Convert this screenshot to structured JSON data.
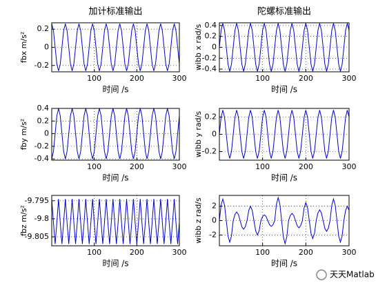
{
  "chart_data": [
    {
      "type": "line",
      "title": "加计标准输出",
      "ylabel": "fbx m/s²",
      "xlabel": "时间 /s",
      "grid": true,
      "xlim": [
        0,
        300
      ],
      "xticks": [
        100,
        200,
        300
      ],
      "ylim": [
        -0.27,
        0.27
      ],
      "yticks": [
        -0.2,
        0,
        0.2
      ],
      "x": [
        0,
        4,
        8,
        12,
        16,
        20,
        24,
        28,
        32,
        36,
        40,
        44,
        48,
        52,
        56,
        60,
        64,
        68,
        72,
        76,
        80,
        84,
        88,
        92,
        96,
        100,
        104,
        108,
        112,
        116,
        120,
        124,
        128,
        132,
        136,
        140,
        144,
        148,
        152,
        156,
        160,
        164,
        168,
        172,
        176,
        180,
        184,
        188,
        192,
        196,
        200,
        204,
        208,
        212,
        216,
        220,
        224,
        228,
        232,
        236,
        240,
        244,
        248,
        252,
        256,
        260,
        264,
        268,
        272,
        276,
        280,
        284,
        288,
        292,
        296,
        300
      ],
      "series": [
        {
          "color": "#0000c8",
          "values": [
            0.26,
            0.184,
            0,
            -0.184,
            -0.26,
            -0.184,
            0,
            0.184,
            0.26,
            0.184,
            0,
            -0.184,
            -0.26,
            -0.184,
            0,
            0.184,
            0.26,
            0.184,
            0,
            -0.184,
            -0.26,
            -0.184,
            0,
            0.184,
            0.26,
            0.184,
            0,
            -0.184,
            -0.26,
            -0.184,
            0,
            0.184,
            0.26,
            0.184,
            0,
            -0.184,
            -0.26,
            -0.184,
            0,
            0.184,
            0.26,
            0.184,
            0,
            -0.184,
            -0.26,
            -0.184,
            0,
            0.184,
            0.26,
            0.184,
            0,
            -0.184,
            -0.26,
            -0.184,
            0,
            0.184,
            0.26,
            0.184,
            0,
            -0.184,
            -0.26,
            -0.184,
            0,
            0.184,
            0.26,
            0.184,
            0,
            -0.184,
            -0.26,
            -0.184,
            0,
            0.184,
            0.26,
            0.184,
            0,
            -0.184
          ]
        }
      ]
    },
    {
      "type": "line",
      "title": "陀螺标准输出",
      "ylabel": "wibb x rad/s",
      "xlabel": "时间 /s",
      "grid": true,
      "xlim": [
        0,
        300
      ],
      "xticks": [
        100,
        200,
        300
      ],
      "ylim": [
        -0.45,
        0.45
      ],
      "yticks": [
        -0.4,
        -0.2,
        0,
        0.2,
        0.4
      ],
      "x": [
        0,
        4,
        8,
        12,
        16,
        20,
        24,
        28,
        32,
        36,
        40,
        44,
        48,
        52,
        56,
        60,
        64,
        68,
        72,
        76,
        80,
        84,
        88,
        92,
        96,
        100,
        104,
        108,
        112,
        116,
        120,
        124,
        128,
        132,
        136,
        140,
        144,
        148,
        152,
        156,
        160,
        164,
        168,
        172,
        176,
        180,
        184,
        188,
        192,
        196,
        200,
        204,
        208,
        212,
        216,
        220,
        224,
        228,
        232,
        236,
        240,
        244,
        248,
        252,
        256,
        260,
        264,
        268,
        272,
        276,
        280,
        284,
        288,
        292,
        296,
        300
      ],
      "series": [
        {
          "color": "#0000c8",
          "values": [
            0,
            0.311,
            0.44,
            0.311,
            0,
            -0.311,
            -0.44,
            -0.311,
            0,
            0.311,
            0.44,
            0.311,
            0,
            -0.311,
            -0.44,
            -0.311,
            0,
            0.311,
            0.44,
            0.311,
            0,
            -0.311,
            -0.44,
            -0.311,
            0,
            0.311,
            0.44,
            0.311,
            0,
            -0.311,
            -0.44,
            -0.311,
            0,
            0.311,
            0.44,
            0.311,
            0,
            -0.311,
            -0.44,
            -0.311,
            0,
            0.311,
            0.44,
            0.311,
            0,
            -0.311,
            -0.44,
            -0.311,
            0,
            0.311,
            0.44,
            0.311,
            0,
            -0.311,
            -0.44,
            -0.311,
            0,
            0.311,
            0.44,
            0.311,
            0,
            -0.311,
            -0.44,
            -0.311,
            0,
            0.311,
            0.44,
            0.311,
            0,
            -0.311,
            -0.44,
            -0.311,
            0,
            0.311,
            0.44,
            0.311
          ]
        }
      ]
    },
    {
      "type": "line",
      "ylabel": "fby m/s²",
      "xlabel": "时间 /s",
      "grid": true,
      "xlim": [
        0,
        300
      ],
      "xticks": [
        100,
        200,
        300
      ],
      "ylim": [
        -0.42,
        0.4
      ],
      "yticks": [
        -0.4,
        -0.2,
        0,
        0.2,
        0.4
      ],
      "x": [
        0,
        4,
        8,
        12,
        16,
        20,
        24,
        28,
        32,
        36,
        40,
        44,
        48,
        52,
        56,
        60,
        64,
        68,
        72,
        76,
        80,
        84,
        88,
        92,
        96,
        100,
        104,
        108,
        112,
        116,
        120,
        124,
        128,
        132,
        136,
        140,
        144,
        148,
        152,
        156,
        160,
        164,
        168,
        172,
        176,
        180,
        184,
        188,
        192,
        196,
        200,
        204,
        208,
        212,
        216,
        220,
        224,
        228,
        232,
        236,
        240,
        244,
        248,
        252,
        256,
        260,
        264,
        268,
        272,
        276,
        280,
        284,
        288,
        292,
        296,
        300
      ],
      "series": [
        {
          "color": "#0000c8",
          "values": [
            -0.4,
            -0.283,
            0,
            0.283,
            0.4,
            0.283,
            0,
            -0.283,
            -0.4,
            -0.283,
            0,
            0.283,
            0.4,
            0.283,
            0,
            -0.283,
            -0.4,
            -0.283,
            0,
            0.283,
            0.4,
            0.283,
            0,
            -0.283,
            -0.4,
            -0.283,
            0,
            0.283,
            0.4,
            0.283,
            0,
            -0.283,
            -0.4,
            -0.283,
            0,
            0.283,
            0.4,
            0.283,
            0,
            -0.283,
            -0.4,
            -0.283,
            0,
            0.283,
            0.4,
            0.283,
            0,
            -0.283,
            -0.4,
            -0.283,
            0,
            0.283,
            0.4,
            0.283,
            0,
            -0.283,
            -0.4,
            -0.283,
            0,
            0.283,
            0.4,
            0.283,
            0,
            -0.283,
            -0.4,
            -0.283,
            0,
            0.283,
            0.4,
            0.283,
            0,
            -0.283,
            -0.4,
            -0.283,
            0,
            0.283
          ]
        }
      ]
    },
    {
      "type": "line",
      "ylabel": "wibb y rad/s",
      "xlabel": "时间 /s",
      "grid": true,
      "xlim": [
        0,
        300
      ],
      "xticks": [
        100,
        200,
        300
      ],
      "ylim": [
        -0.3,
        0.3
      ],
      "yticks": [
        -0.2,
        0,
        0.2
      ],
      "x": [
        0,
        4,
        8,
        12,
        16,
        20,
        24,
        28,
        32,
        36,
        40,
        44,
        48,
        52,
        56,
        60,
        64,
        68,
        72,
        76,
        80,
        84,
        88,
        92,
        96,
        100,
        104,
        108,
        112,
        116,
        120,
        124,
        128,
        132,
        136,
        140,
        144,
        148,
        152,
        156,
        160,
        164,
        168,
        172,
        176,
        180,
        184,
        188,
        192,
        196,
        200,
        204,
        208,
        212,
        216,
        220,
        224,
        228,
        232,
        236,
        240,
        244,
        248,
        252,
        256,
        260,
        264,
        268,
        272,
        276,
        280,
        284,
        288,
        292,
        296,
        300
      ],
      "series": [
        {
          "color": "#0000c8",
          "values": [
            0,
            0.198,
            0.28,
            0.198,
            0,
            -0.198,
            -0.28,
            -0.198,
            0,
            0.198,
            0.28,
            0.198,
            0,
            -0.198,
            -0.28,
            -0.198,
            0,
            0.198,
            0.28,
            0.198,
            0,
            -0.198,
            -0.28,
            -0.198,
            0,
            0.198,
            0.28,
            0.198,
            0,
            -0.198,
            -0.28,
            -0.198,
            0,
            0.198,
            0.28,
            0.198,
            0,
            -0.198,
            -0.28,
            -0.198,
            0,
            0.198,
            0.28,
            0.198,
            0,
            -0.198,
            -0.28,
            -0.198,
            0,
            0.198,
            0.28,
            0.198,
            0,
            -0.198,
            -0.28,
            -0.198,
            0,
            0.198,
            0.28,
            0.198,
            0,
            -0.198,
            -0.28,
            -0.198,
            0,
            0.198,
            0.28,
            0.198,
            0,
            -0.198,
            -0.28,
            -0.198,
            0,
            0.198,
            0.28,
            0.198
          ]
        }
      ]
    },
    {
      "type": "line",
      "ylabel": "fbz m/s²",
      "xlabel": "时间 /s",
      "grid": true,
      "xlim": [
        0,
        300
      ],
      "xticks": [
        100,
        200,
        300
      ],
      "ylim": [
        -9.8075,
        -9.7935
      ],
      "yticks": [
        -9.805,
        -9.8,
        -9.795
      ],
      "x": [
        0,
        4,
        8,
        12,
        16,
        20,
        24,
        28,
        32,
        36,
        40,
        44,
        48,
        52,
        56,
        60,
        64,
        68,
        72,
        76,
        80,
        84,
        88,
        92,
        96,
        100,
        104,
        108,
        112,
        116,
        120,
        124,
        128,
        132,
        136,
        140,
        144,
        148,
        152,
        156,
        160,
        164,
        168,
        172,
        176,
        180,
        184,
        188,
        192,
        196,
        200,
        204,
        208,
        212,
        216,
        220,
        224,
        228,
        232,
        236,
        240,
        244,
        248,
        252,
        256,
        260,
        264,
        268,
        272,
        276,
        280,
        284,
        288,
        292,
        296,
        300
      ],
      "series": [
        {
          "color": "#0000c8",
          "values": [
            -9.7945,
            -9.801,
            -9.807,
            -9.801,
            -9.7945,
            -9.801,
            -9.807,
            -9.801,
            -9.7945,
            -9.801,
            -9.807,
            -9.801,
            -9.7945,
            -9.801,
            -9.807,
            -9.801,
            -9.7945,
            -9.801,
            -9.807,
            -9.801,
            -9.7945,
            -9.801,
            -9.807,
            -9.801,
            -9.7945,
            -9.801,
            -9.807,
            -9.801,
            -9.7945,
            -9.801,
            -9.807,
            -9.801,
            -9.7945,
            -9.801,
            -9.807,
            -9.801,
            -9.7945,
            -9.801,
            -9.807,
            -9.801,
            -9.7945,
            -9.801,
            -9.807,
            -9.801,
            -9.7945,
            -9.801,
            -9.807,
            -9.801,
            -9.7945,
            -9.801,
            -9.807,
            -9.801,
            -9.7945,
            -9.801,
            -9.807,
            -9.801,
            -9.7945,
            -9.801,
            -9.807,
            -9.801,
            -9.7945,
            -9.801,
            -9.807,
            -9.801,
            -9.7945,
            -9.801,
            -9.807,
            -9.801,
            -9.7945,
            -9.801,
            -9.807,
            -9.801,
            -9.7945,
            -9.801,
            -9.807,
            -9.801
          ]
        }
      ]
    },
    {
      "type": "line",
      "ylabel": "wibb z rad/s",
      "xlabel": "时间 /s",
      "grid": true,
      "xlim": [
        0,
        300
      ],
      "xticks": [
        100,
        200,
        300
      ],
      "ylim": [
        -3.5,
        3.5
      ],
      "yticks": [
        -2,
        0,
        2
      ],
      "x": [
        0,
        4,
        8,
        12,
        16,
        20,
        24,
        28,
        32,
        36,
        40,
        44,
        48,
        52,
        56,
        60,
        64,
        68,
        72,
        76,
        80,
        84,
        88,
        92,
        96,
        100,
        104,
        108,
        112,
        116,
        120,
        124,
        128,
        132,
        136,
        140,
        144,
        148,
        152,
        156,
        160,
        164,
        168,
        172,
        176,
        180,
        184,
        188,
        192,
        196,
        200,
        204,
        208,
        212,
        216,
        220,
        224,
        228,
        232,
        236,
        240,
        244,
        248,
        252,
        256,
        260,
        264,
        268,
        272,
        276,
        280,
        284,
        288,
        292,
        296,
        300
      ],
      "series": [
        {
          "color": "#0000c8",
          "values": [
            0,
            2.13,
            3,
            2.13,
            0,
            -2.13,
            -3,
            -2.13,
            0,
            0.85,
            1.2,
            0.85,
            0,
            -0.85,
            -1.2,
            -0.85,
            0,
            1.42,
            2,
            1.42,
            0,
            -1.42,
            -2,
            -1.42,
            0,
            0.57,
            0.8,
            0.57,
            0,
            -0.57,
            -0.8,
            -0.57,
            0,
            2.27,
            3.2,
            2.27,
            0,
            -2.27,
            -3.2,
            -2.27,
            0,
            0.71,
            1,
            0.71,
            0,
            -0.71,
            -1,
            -0.71,
            0,
            1.78,
            2.5,
            1.78,
            0,
            -1.78,
            -2.5,
            -1.78,
            0,
            1.07,
            1.5,
            1.07,
            0,
            -1.07,
            -1.5,
            -1.07,
            0,
            2.13,
            3,
            2.13,
            0,
            -2.13,
            -3,
            -2.13,
            0,
            1.42,
            2,
            1.42
          ]
        }
      ]
    }
  ],
  "watermark": "天天Matlab"
}
